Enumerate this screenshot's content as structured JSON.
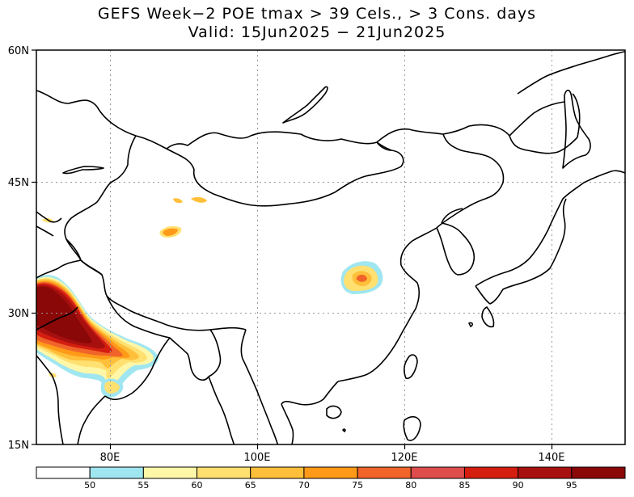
{
  "title": {
    "line1": "GEFS Week−2 POE tmax > 39 Cels., > 3 Cons. days",
    "line2": "Valid: 15Jun2025 − 21Jun2025"
  },
  "map": {
    "lon_range": [
      70,
      150
    ],
    "lat_range": [
      15,
      60
    ],
    "lat_labels": [
      "15N",
      "30N",
      "45N",
      "60N"
    ],
    "lon_labels": [
      "80E",
      "100E",
      "120E",
      "140E"
    ],
    "grid": true
  },
  "colorbar": {
    "ticks": [
      "50",
      "55",
      "60",
      "65",
      "70",
      "75",
      "80",
      "85",
      "90",
      "95"
    ],
    "colors": [
      "#ffffff",
      "#a0e6f0",
      "#fff7a8",
      "#ffe070",
      "#ffbf3a",
      "#ff9a18",
      "#f0642a",
      "#de4c4c",
      "#d41e10",
      "#a81010",
      "#8a0808"
    ]
  }
}
